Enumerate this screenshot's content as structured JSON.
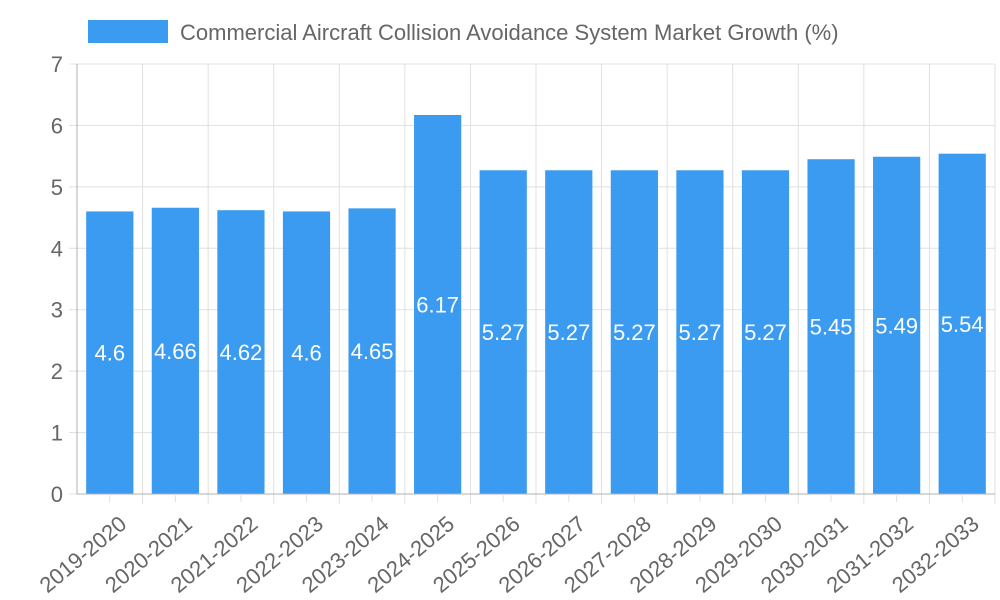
{
  "chart_data": {
    "type": "bar",
    "title": "",
    "xlabel": "",
    "ylabel": "",
    "categories": [
      "2019-2020",
      "2020-2021",
      "2021-2022",
      "2022-2023",
      "2023-2024",
      "2024-2025",
      "2025-2026",
      "2026-2027",
      "2027-2028",
      "2028-2029",
      "2029-2030",
      "2030-2031",
      "2031-2032",
      "2032-2033"
    ],
    "series": [
      {
        "name": "Commercial Aircraft Collision Avoidance System Market Growth (%)",
        "values": [
          4.6,
          4.66,
          4.62,
          4.6,
          4.65,
          6.17,
          5.27,
          5.27,
          5.27,
          5.27,
          5.27,
          5.45,
          5.49,
          5.54
        ],
        "data_labels": [
          "4.6",
          "4.66",
          "4.62",
          "4.6",
          "4.65",
          "6.17",
          "5.27",
          "5.27",
          "5.27",
          "5.27",
          "5.27",
          "5.45",
          "5.49",
          "5.54"
        ]
      }
    ],
    "ylim": [
      0,
      7
    ],
    "yticks": [
      "0",
      "1",
      "2",
      "3",
      "4",
      "5",
      "6",
      "7"
    ],
    "grid": true,
    "legend": "top-center",
    "colors": {
      "bar": "#3a9bf0",
      "grid": "#e0e0e0",
      "axis": "#b0b0b0",
      "text": "#666666",
      "data_label": "#ffffff"
    }
  }
}
